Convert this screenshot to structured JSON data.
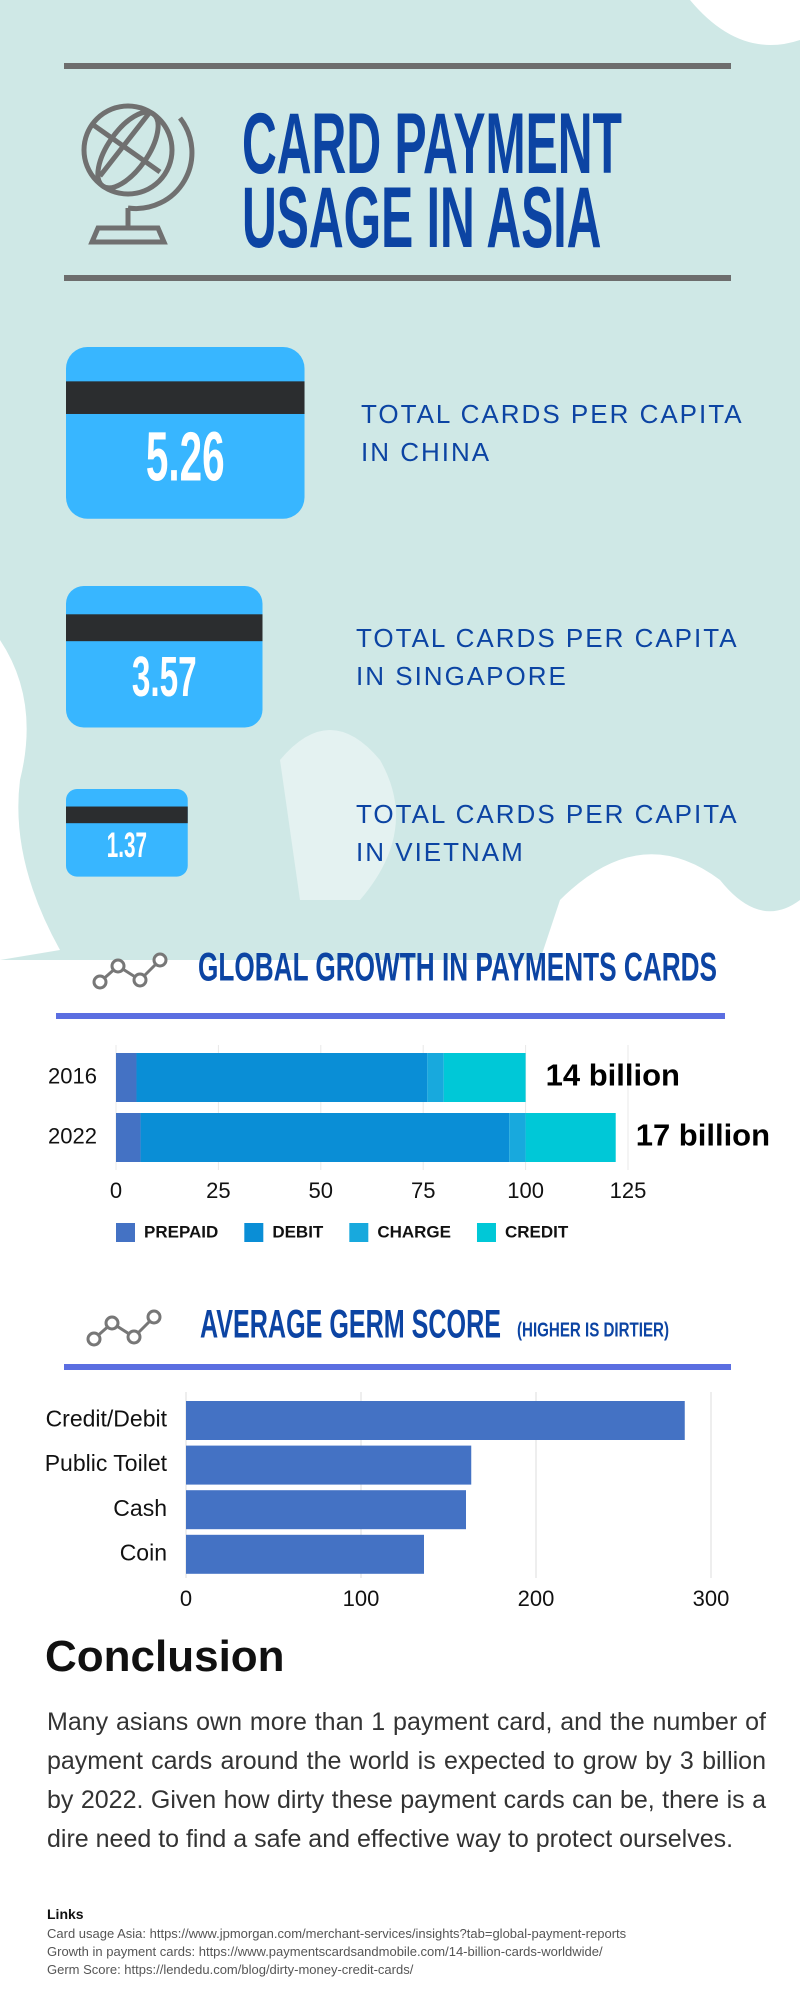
{
  "header": {
    "title": "CARD PAYMENT USAGE IN ASIA"
  },
  "stats": [
    {
      "value": 5.26,
      "label": "TOTAL CARDS PER CAPITA IN CHINA"
    },
    {
      "value": 3.57,
      "label": "TOTAL CARDS PER CAPITA IN SINGAPORE"
    },
    {
      "value": 1.37,
      "label": "TOTAL CARDS PER CAPITA IN VIETNAM"
    }
  ],
  "chart_data": [
    {
      "type": "bar",
      "orientation": "horizontal",
      "stacked": true,
      "title": "GLOBAL GROWTH IN PAYMENTS CARDS",
      "categories": [
        "2016",
        "2022"
      ],
      "series": [
        {
          "name": "PREPAID",
          "color": "#4472c4",
          "values": [
            5,
            6
          ]
        },
        {
          "name": "DEBIT",
          "color": "#0a8ed6",
          "values": [
            71,
            90
          ]
        },
        {
          "name": "CHARGE",
          "color": "#18a9dd",
          "values": [
            4,
            4
          ]
        },
        {
          "name": "CREDIT",
          "color": "#00c8d7",
          "values": [
            20,
            22
          ]
        }
      ],
      "annotations": [
        "14 billion",
        "17 billion"
      ],
      "xlim": [
        0,
        125
      ],
      "xticks": [
        0,
        25,
        50,
        75,
        100,
        125
      ],
      "grid": true
    },
    {
      "type": "bar",
      "orientation": "horizontal",
      "title": "AVERAGE GERM SCORE",
      "subtitle": "(HIGHER IS DIRTIER)",
      "categories": [
        "Credit/Debit",
        "Public Toilet",
        "Cash",
        "Coin"
      ],
      "values": [
        285,
        163,
        160,
        136
      ],
      "color": "#4472c4",
      "xlim": [
        0,
        300
      ],
      "xticks": [
        0,
        100,
        200,
        300
      ],
      "grid": true
    }
  ],
  "conclusion": {
    "heading": "Conclusion",
    "text": "Many asians own more than 1 payment card, and the number of payment cards around the world is expected to grow by 3 billion by 2022. Given how dirty these payment cards can be, there is a dire need to find a safe and effective way to protect ourselves."
  },
  "links": {
    "heading": "Links",
    "items": [
      "Card usage Asia: https://www.jpmorgan.com/merchant-services/insights?tab=global-payment-reports",
      "Growth in payment cards: https://www.paymentscardsandmobile.com/14-billion-cards-worldwide/",
      "Germ Score: https://lendedu.com/blog/dirty-money-credit-cards/"
    ]
  }
}
